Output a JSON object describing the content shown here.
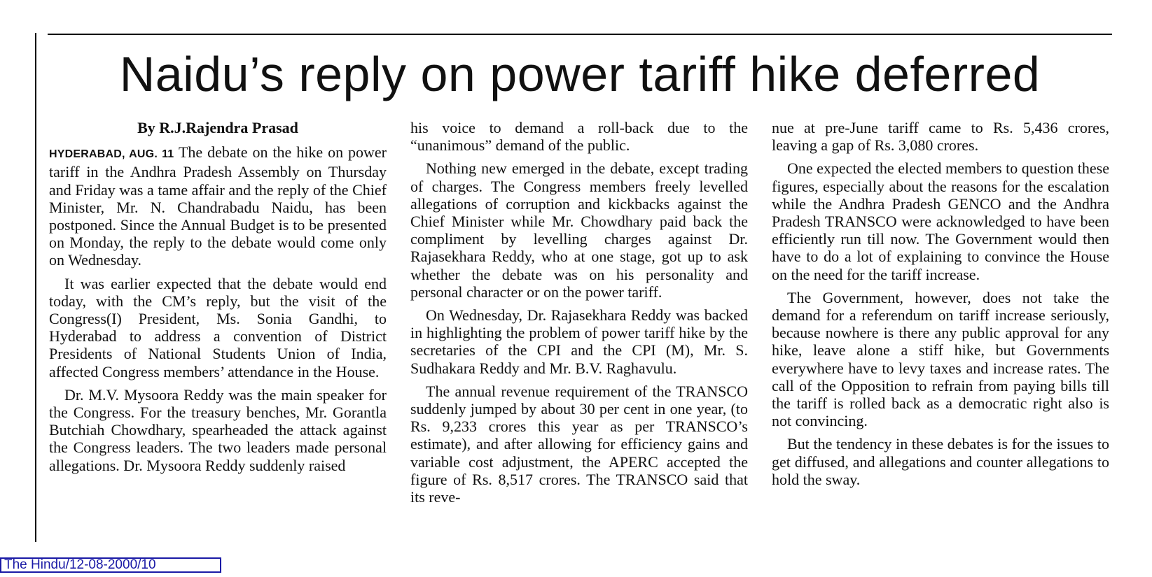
{
  "article": {
    "headline": "Naidu’s reply on power tariff hike deferred",
    "byline": "By R.J.Rajendra Prasad",
    "dateline": "HYDERABAD, AUG. 11",
    "columns": [
      {
        "paragraphs": [
          "The debate on the hike on power tariff in the Andhra Pradesh Assembly on Thursday and Friday was a tame affair and the reply of the Chief Minister, Mr. N. Chandrabadu Naidu, has been postponed. Since the Annual Budget is to be presented on Monday, the reply to the debate would come only on Wednesday.",
          "It was earlier expected that the debate would end today, with the CM’s reply, but the visit of the Congress(I) President, Ms. Sonia Gandhi, to Hyderabad to address a convention of District Presidents of National Students Union of India, affected Congress members’ attendance in the House.",
          "Dr. M.V. Mysoora Reddy was the main speaker for the Congress. For the treasury benches, Mr. Gorantla Butchiah Chowdhary, spearheaded the attack against the Congress leaders. The two leaders made personal allegations. Dr. Mysoora Reddy suddenly raised"
        ]
      },
      {
        "paragraphs": [
          "his voice to demand a roll-back due to the “unanimous” demand of the public.",
          "Nothing new emerged in the debate, except trading of charges. The Congress members freely levelled allegations of corruption and kickbacks against the Chief Minister while Mr. Chowdhary paid back the compliment by levelling charges against Dr. Rajasekhara Reddy, who at one stage, got up to ask whether the debate was on his personality and personal character or on the power tariff.",
          "On Wednesday, Dr. Rajasekhara Reddy was backed in highlighting the problem of power tariff hike by the secretaries of the CPI and the CPI (M), Mr. S. Sudhakara Reddy and Mr. B.V. Raghavulu.",
          "The annual revenue requirement of the TRANSCO suddenly jumped by about 30 per cent in one year, (to Rs. 9,233 crores this year as per TRANSCO’s estimate), and after allowing for efficiency gains and variable cost adjustment, the APERC accepted the figure of Rs. 8,517 crores. The TRANSCO said that its reve-"
        ]
      },
      {
        "paragraphs": [
          "nue at pre-June tariff came to Rs. 5,436 crores, leaving a gap of Rs. 3,080 crores.",
          "One expected the elected members to question these figures, especially about the reasons for the escalation while the Andhra Pradesh GENCO and the Andhra Pradesh TRANSCO were acknowledged to have been efficiently run till now. The Government would then have to do a lot of explaining to convince the House on the need for the tariff increase.",
          "The Government, however, does not take the demand for a referendum on tariff increase seriously, because nowhere is there any public approval for any hike, leave alone a stiff hike, but Governments everywhere have to levy taxes and increase rates. The call of the Opposition to refrain from paying bills till the tariff is rolled back as a democratic right also is not convincing.",
          "But the tendency in these debates is for the issues to get diffused, and allegations and counter allegations to hold the sway."
        ]
      }
    ]
  },
  "source_label": "The Hindu/12-08-2000/10",
  "colors": {
    "text": "#111111",
    "source_border": "#1a1aa6"
  }
}
